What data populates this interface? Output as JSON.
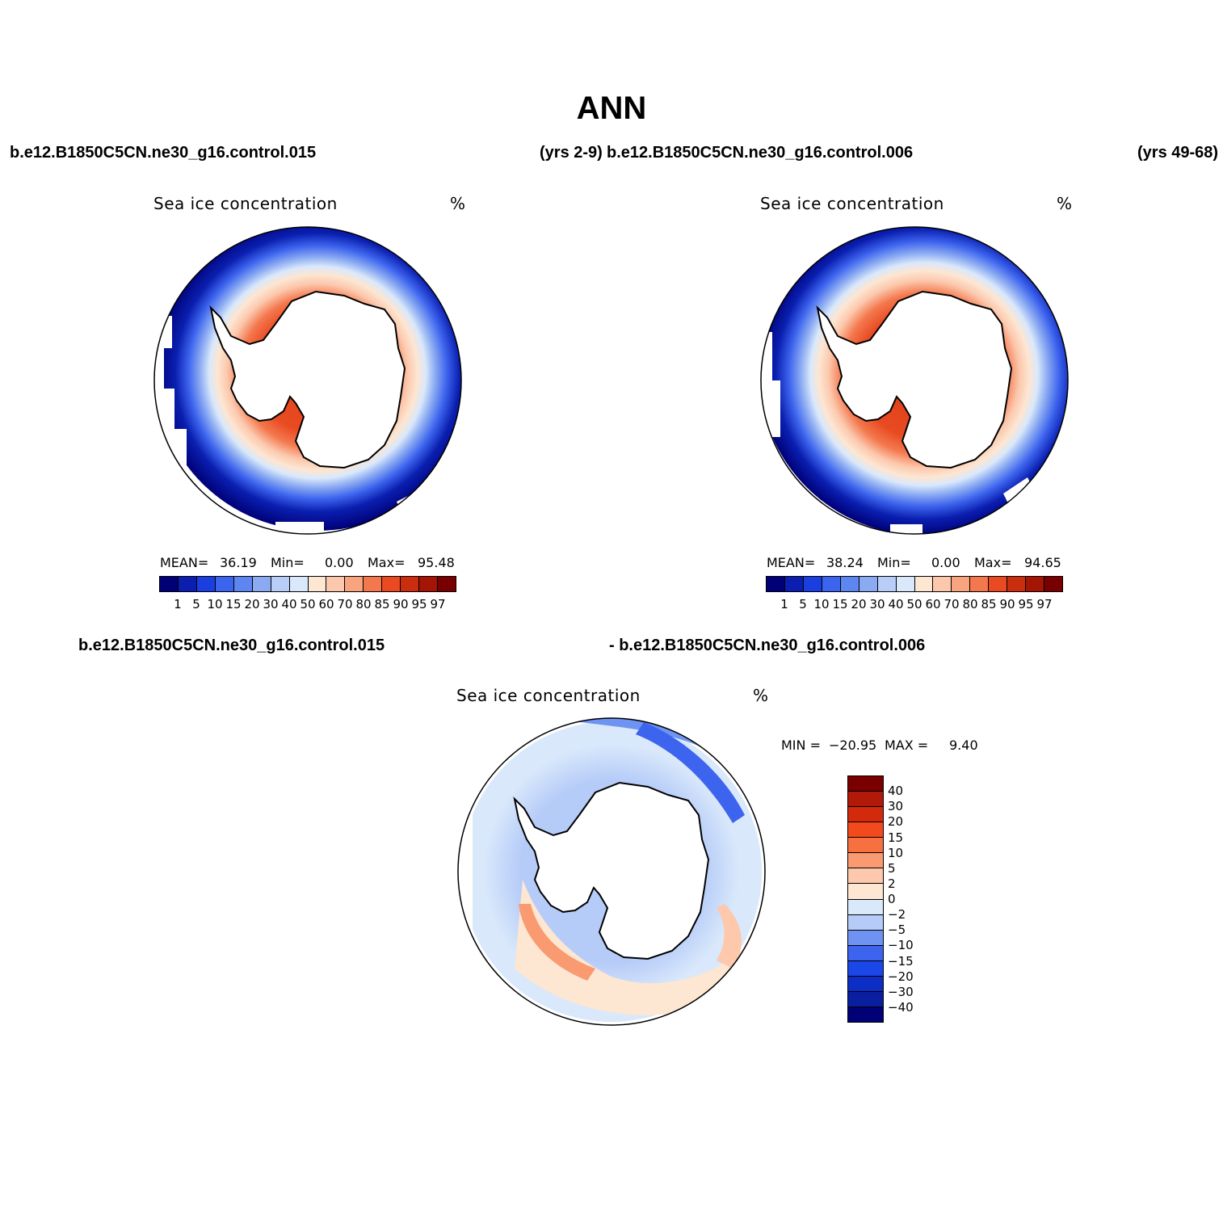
{
  "figure": {
    "title": "ANN",
    "case_a": "b.e12.B1850C5CN.ne30_g16.control.015",
    "case_a_years": "(yrs 2-9)",
    "case_b": "b.e12.B1850C5CN.ne30_g16.control.006",
    "case_b_years": "(yrs 49-68)",
    "diff_label_a": "b.e12.B1850C5CN.ne30_g16.control.015",
    "diff_label_b": "- b.e12.B1850C5CN.ne30_g16.control.006"
  },
  "panels": [
    {
      "variable": "Sea ice concentration",
      "units": "%",
      "mean_label": "MEAN=",
      "mean": "36.19",
      "min_label": "Min=",
      "min": "0.00",
      "max_label": "Max=",
      "max": "95.48"
    },
    {
      "variable": "Sea ice concentration",
      "units": "%",
      "mean_label": "MEAN=",
      "mean": "38.24",
      "min_label": "Min=",
      "min": "0.00",
      "max_label": "Max=",
      "max": "94.65"
    }
  ],
  "diff_panel": {
    "variable": "Sea ice concentration",
    "units": "%",
    "min_label": "MIN =",
    "min": "−20.95",
    "max_label": "MAX =",
    "max": "9.40"
  },
  "colorbar_levels": [
    "1",
    "5",
    "10",
    "15",
    "20",
    "30",
    "40",
    "50",
    "60",
    "70",
    "80",
    "85",
    "90",
    "95",
    "97"
  ],
  "colorbar_colors": [
    "#000077",
    "#0a1fb0",
    "#1a3ee0",
    "#3d64ee",
    "#5e86f0",
    "#8aaaf2",
    "#b8cdf8",
    "#d9e8fb",
    "#fde6d2",
    "#fcc8ad",
    "#f8a47e",
    "#f4784d",
    "#e94a22",
    "#cb2d0f",
    "#a41506",
    "#780000"
  ],
  "diff_levels": [
    "40",
    "30",
    "20",
    "15",
    "10",
    "5",
    "2",
    "0",
    "−2",
    "−5",
    "−10",
    "−15",
    "−20",
    "−30",
    "−40"
  ],
  "diff_colors": [
    "#7a0000",
    "#b11a08",
    "#d42a0c",
    "#f24a1d",
    "#f7703f",
    "#f99a70",
    "#fdc8ab",
    "#fde6d2",
    "#d9e8fb",
    "#b5cbf8",
    "#6f93f2",
    "#3d64ee",
    "#1b46e8",
    "#0d2ec4",
    "#0a1fa0",
    "#000077"
  ]
}
